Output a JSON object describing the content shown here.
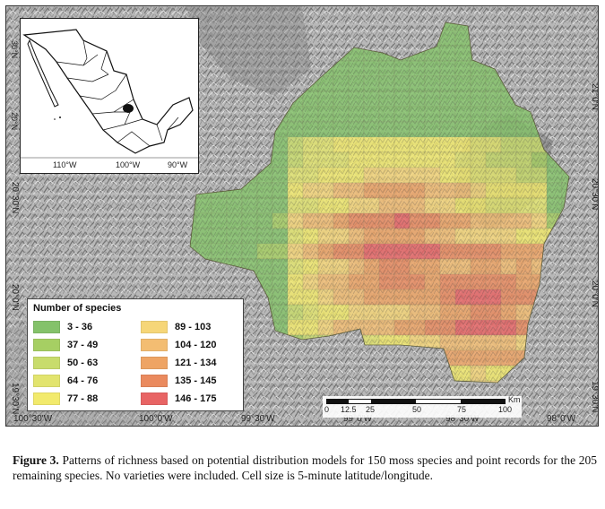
{
  "map": {
    "x_ticks": [
      "100°30'W",
      "100°0'W",
      "99°30'W",
      "99°0'W",
      "98°30'W",
      "98°0'W"
    ],
    "y_ticks": [
      "21°0'N",
      "20°30'N",
      "20°0'N",
      "19°30'N"
    ]
  },
  "inset": {
    "x_ticks": [
      "110°W",
      "100°W",
      "90°W"
    ],
    "y_ticks": [
      "30°N",
      "20°N"
    ]
  },
  "legend": {
    "title": "Number of species",
    "items": [
      {
        "label": "3 - 36",
        "color": "#84c26a"
      },
      {
        "label": "37 - 49",
        "color": "#a6cf63"
      },
      {
        "label": "50 - 63",
        "color": "#c8dc6c"
      },
      {
        "label": "64 - 76",
        "color": "#e2e46e"
      },
      {
        "label": "77 - 88",
        "color": "#f2ea6c"
      },
      {
        "label": "89 - 103",
        "color": "#f6d678"
      },
      {
        "label": "104 - 120",
        "color": "#f3bd72"
      },
      {
        "label": "121 - 134",
        "color": "#eea464"
      },
      {
        "label": "135 - 145",
        "color": "#ea8a5e"
      },
      {
        "label": "146 - 175",
        "color": "#e86464"
      }
    ]
  },
  "scale": {
    "unit": "Km",
    "labels": [
      "0",
      "12.5",
      "25",
      "50",
      "75",
      "100"
    ]
  },
  "caption": {
    "label": "Figure 3.",
    "text": " Patterns of richness based on potential distribution models for 150 moss species and point records for the 205 remaining species. No varieties were included. Cell size is 5-minute latitude/longitude."
  }
}
